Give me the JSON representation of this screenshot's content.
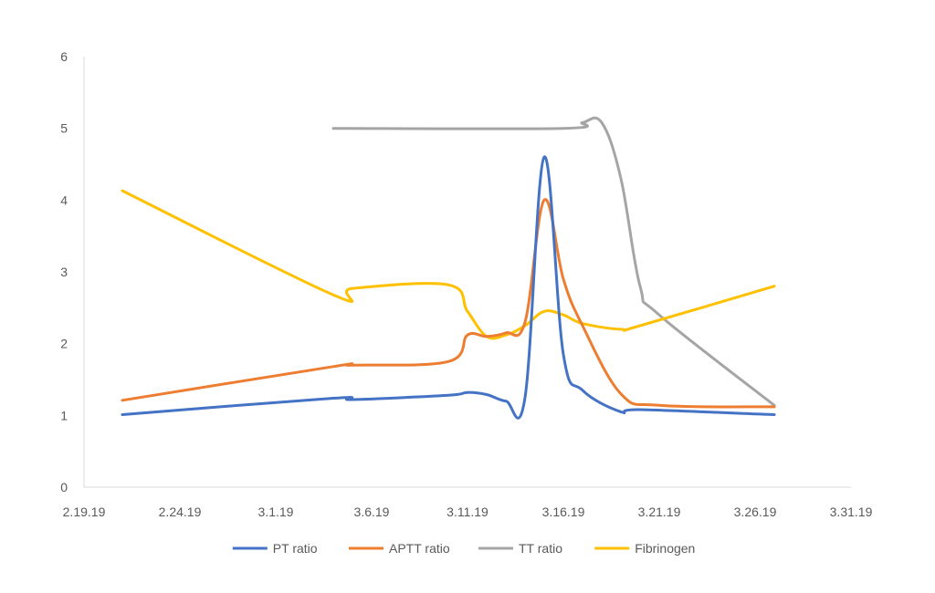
{
  "chart_data": {
    "type": "line",
    "title": "",
    "xlabel": "",
    "ylabel": "",
    "x_ticks": [
      "2.19.19",
      "2.24.19",
      "3.1.19",
      "3.6.19",
      "3.11.19",
      "3.16.19",
      "3.21.19",
      "3.26.19",
      "3.31.19"
    ],
    "x_range": [
      "2.19.19",
      "3.31.19"
    ],
    "y_ticks": [
      "0",
      "1",
      "2",
      "3",
      "4",
      "5",
      "6"
    ],
    "ylim": [
      0,
      6
    ],
    "grid": false,
    "legend": "bottom",
    "colors": {
      "PT ratio": "#4472c4",
      "APTT ratio": "#ed7d31",
      "TT ratio": "#a5a5a5",
      "Fibrinogen": "#ffc000",
      "axis": "#d9d9d9",
      "text": "#595959"
    },
    "series": [
      {
        "name": "PT ratio",
        "points": [
          [
            "2.21.19",
            1.01
          ],
          [
            "3.4.19",
            1.24
          ],
          [
            "3.5.19",
            1.22
          ],
          [
            "3.10.19",
            1.28
          ],
          [
            "3.11.19",
            1.32
          ],
          [
            "3.12.19",
            1.29
          ],
          [
            "3.13.19",
            1.2
          ],
          [
            "3.14.19",
            1.25
          ],
          [
            "3.15.19",
            4.6
          ],
          [
            "3.16.19",
            1.85
          ],
          [
            "3.17.19",
            1.35
          ],
          [
            "3.19.19",
            1.05
          ],
          [
            "3.20.19",
            1.08
          ],
          [
            "3.27.19",
            1.01
          ]
        ]
      },
      {
        "name": "APTT ratio",
        "points": [
          [
            "2.21.19",
            1.21
          ],
          [
            "3.4.19",
            1.68
          ],
          [
            "3.5.19",
            1.7
          ],
          [
            "3.10.19",
            1.75
          ],
          [
            "3.11.19",
            2.12
          ],
          [
            "3.12.19",
            2.1
          ],
          [
            "3.13.19",
            2.15
          ],
          [
            "3.14.19",
            2.3
          ],
          [
            "3.15.19",
            4.0
          ],
          [
            "3.16.19",
            2.9
          ],
          [
            "3.17.19",
            2.25
          ],
          [
            "3.19.19",
            1.3
          ],
          [
            "3.21.19",
            1.14
          ],
          [
            "3.27.19",
            1.12
          ]
        ]
      },
      {
        "name": "TT ratio",
        "points": [
          [
            "3.4.19",
            5.0
          ],
          [
            "3.16.19",
            5.0
          ],
          [
            "3.17.19",
            5.08
          ],
          [
            "3.18.19",
            5.08
          ],
          [
            "3.19.19",
            4.3
          ],
          [
            "3.20.19",
            2.8
          ],
          [
            "3.21.19",
            2.4
          ],
          [
            "3.27.19",
            1.14
          ]
        ]
      },
      {
        "name": "Fibrinogen",
        "points": [
          [
            "2.21.19",
            4.13
          ],
          [
            "3.4.19",
            2.68
          ],
          [
            "3.5.19",
            2.77
          ],
          [
            "3.10.19",
            2.82
          ],
          [
            "3.11.19",
            2.45
          ],
          [
            "3.12.19",
            2.1
          ],
          [
            "3.13.19",
            2.12
          ],
          [
            "3.14.19",
            2.25
          ],
          [
            "3.15.19",
            2.45
          ],
          [
            "3.16.19",
            2.4
          ],
          [
            "3.17.19",
            2.28
          ],
          [
            "3.19.19",
            2.2
          ],
          [
            "3.20.19",
            2.25
          ],
          [
            "3.27.19",
            2.8
          ]
        ]
      }
    ]
  }
}
